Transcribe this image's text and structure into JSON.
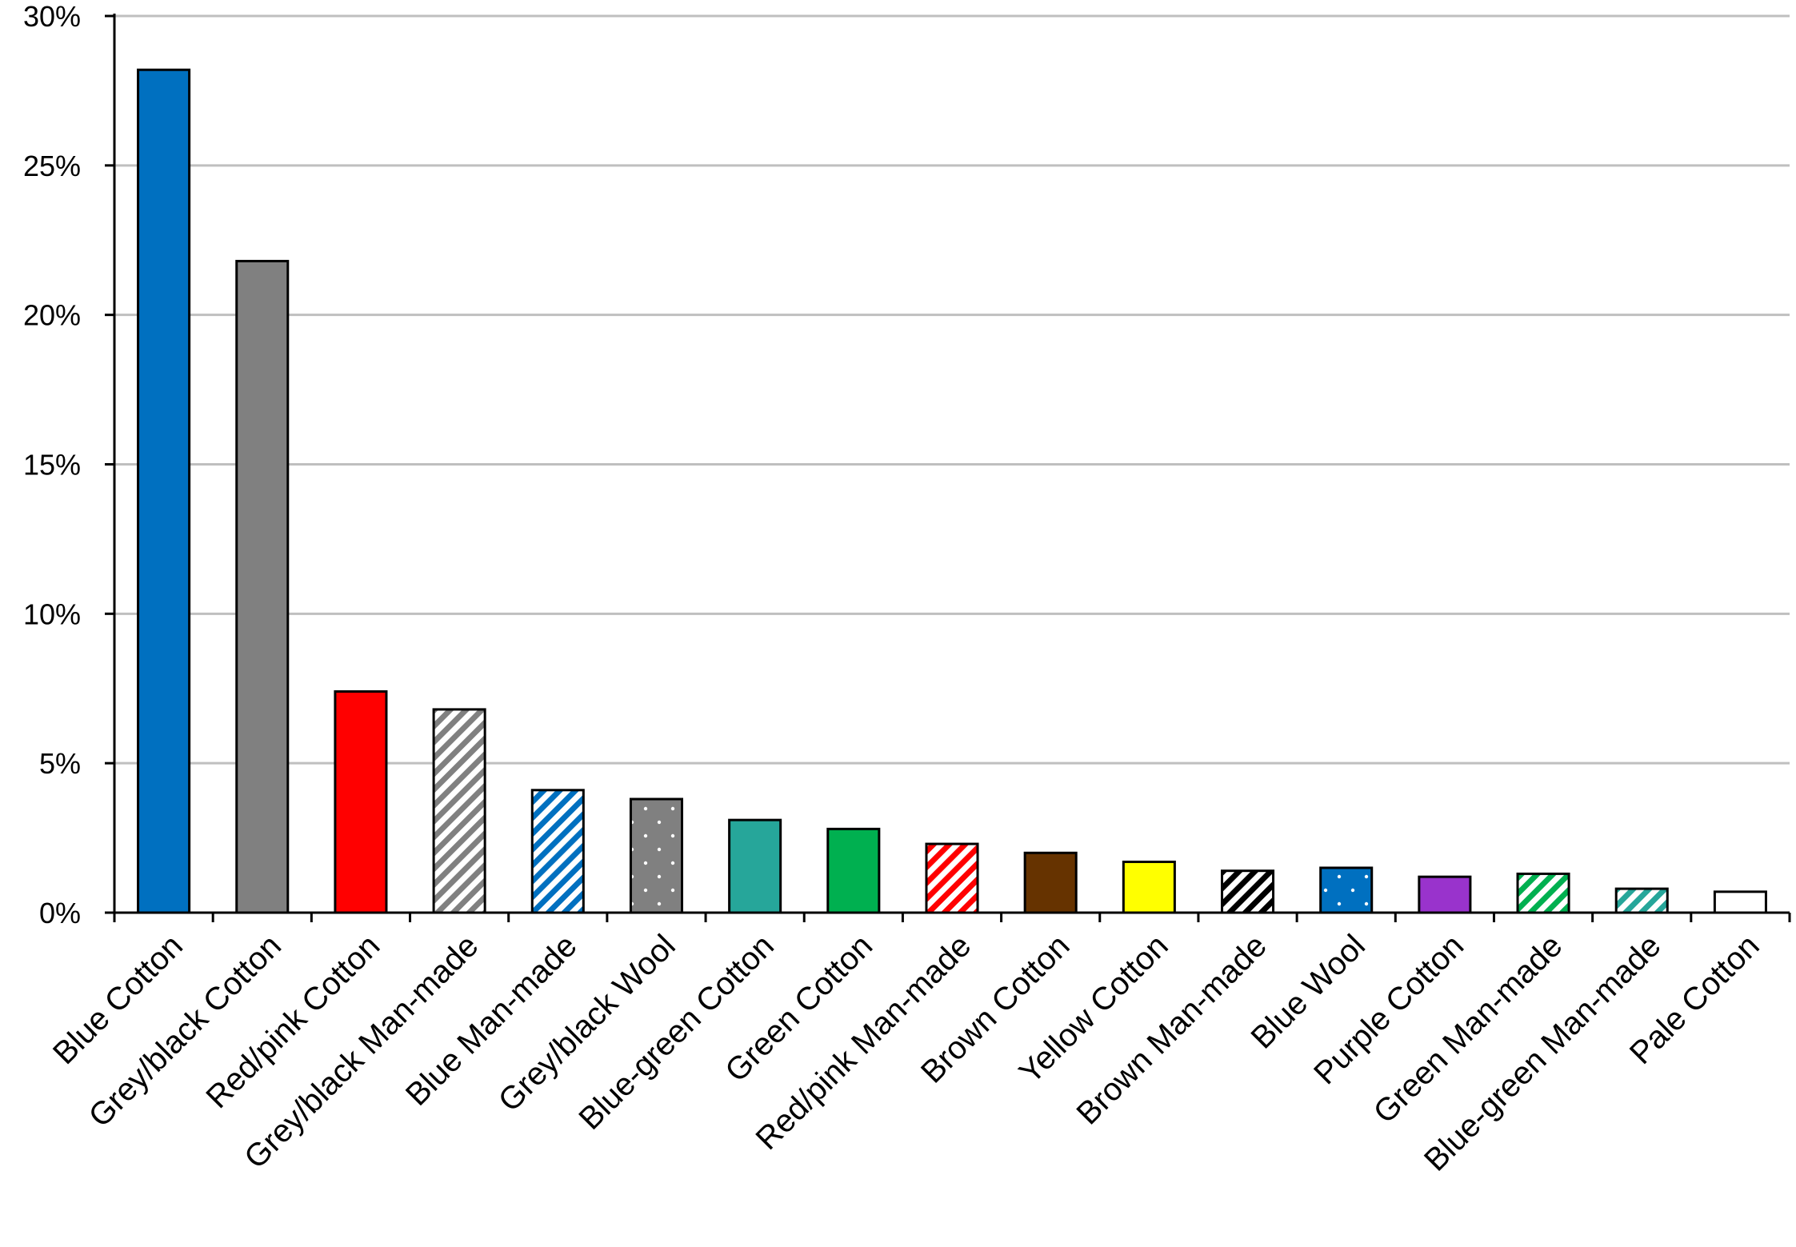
{
  "chart_data": {
    "type": "bar",
    "title": "",
    "xlabel": "",
    "ylabel": "",
    "ylim": [
      0,
      30
    ],
    "yticks": [
      0,
      5,
      10,
      15,
      20,
      25,
      30
    ],
    "ytick_labels": [
      "0%",
      "5%",
      "10%",
      "15%",
      "20%",
      "25%",
      "30%"
    ],
    "grid": true,
    "legend": "none",
    "categories": [
      "Blue Cotton",
      "Grey/black Cotton",
      "Red/pink Cotton",
      "Grey/black Man-made",
      "Blue Man-made",
      "Grey/black Wool",
      "Blue-green Cotton",
      "Green Cotton",
      "Red/pink Man-made",
      "Brown Cotton",
      "Yellow Cotton",
      "Brown Man-made",
      "Blue Wool",
      "Purple Cotton",
      "Green Man-made",
      "Blue-green Man-made",
      "Pale Cotton"
    ],
    "values": [
      28.2,
      21.8,
      7.4,
      6.8,
      4.1,
      3.8,
      3.1,
      2.8,
      2.3,
      2.0,
      1.7,
      1.4,
      1.5,
      1.2,
      1.3,
      0.8,
      0.7
    ],
    "bar_styles": [
      {
        "fill": "#0070c0",
        "pattern": "solid"
      },
      {
        "fill": "#808080",
        "pattern": "solid"
      },
      {
        "fill": "#ff0000",
        "pattern": "solid"
      },
      {
        "fill": "#808080",
        "pattern": "stripes"
      },
      {
        "fill": "#0070c0",
        "pattern": "stripes"
      },
      {
        "fill": "#808080",
        "pattern": "dots"
      },
      {
        "fill": "#26a69a",
        "pattern": "solid"
      },
      {
        "fill": "#00b050",
        "pattern": "solid"
      },
      {
        "fill": "#ff0000",
        "pattern": "stripes"
      },
      {
        "fill": "#663300",
        "pattern": "solid"
      },
      {
        "fill": "#ffff00",
        "pattern": "solid"
      },
      {
        "fill": "#000000",
        "pattern": "stripes"
      },
      {
        "fill": "#0070c0",
        "pattern": "dots"
      },
      {
        "fill": "#9933cc",
        "pattern": "solid"
      },
      {
        "fill": "#00b050",
        "pattern": "stripes"
      },
      {
        "fill": "#26a69a",
        "pattern": "stripes"
      },
      {
        "fill": "#ffffff",
        "pattern": "solid"
      }
    ]
  }
}
